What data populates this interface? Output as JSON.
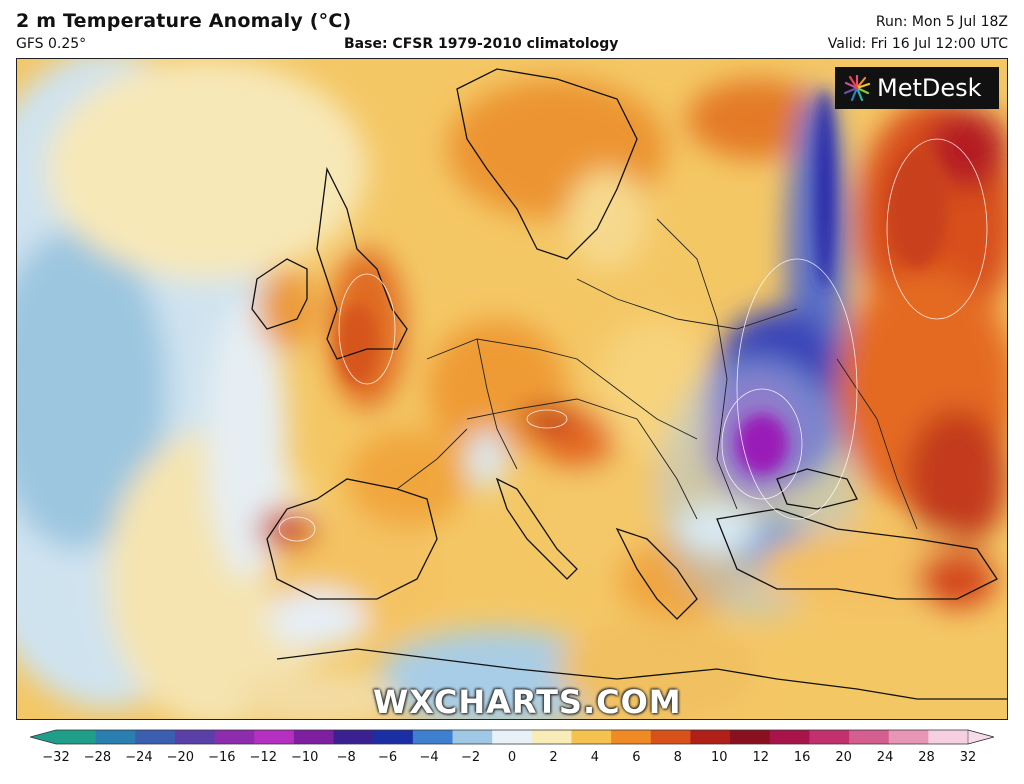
{
  "header": {
    "title": "2 m Temperature Anomaly (°C)",
    "model": "GFS 0.25°",
    "base": "Base: CFSR 1979-2010 climatology",
    "run": "Run: Mon 5 Jul 18Z",
    "valid": "Valid: Fri 16 Jul 12:00 UTC"
  },
  "logo": {
    "text": "MetDesk",
    "icon": "metdesk-burst-icon"
  },
  "watermark": "WXCHARTS.COM",
  "colorbar": {
    "ticks": [
      "−32",
      "−28",
      "−24",
      "−20",
      "−16",
      "−12",
      "−10",
      "−8",
      "−6",
      "−4",
      "−2",
      "0",
      "2",
      "4",
      "6",
      "8",
      "10",
      "12",
      "16",
      "20",
      "24",
      "28",
      "32"
    ],
    "colors": [
      "#1f9e89",
      "#2a7fb0",
      "#3b5fb0",
      "#5a3fa8",
      "#8e2cb0",
      "#b52fc0",
      "#7d1fa0",
      "#3a2090",
      "#1b2fa5",
      "#3f7fcf",
      "#9fc8e6",
      "#e8f1f7",
      "#f8ecb8",
      "#f6c24f",
      "#ef8a25",
      "#d8501a",
      "#b01f18",
      "#8a1020",
      "#a8144a",
      "#c2306e",
      "#d45e8f",
      "#e896b6",
      "#f6d0e0"
    ],
    "extend_left": "#1f9e89",
    "extend_right": "#f7dbe8"
  }
}
